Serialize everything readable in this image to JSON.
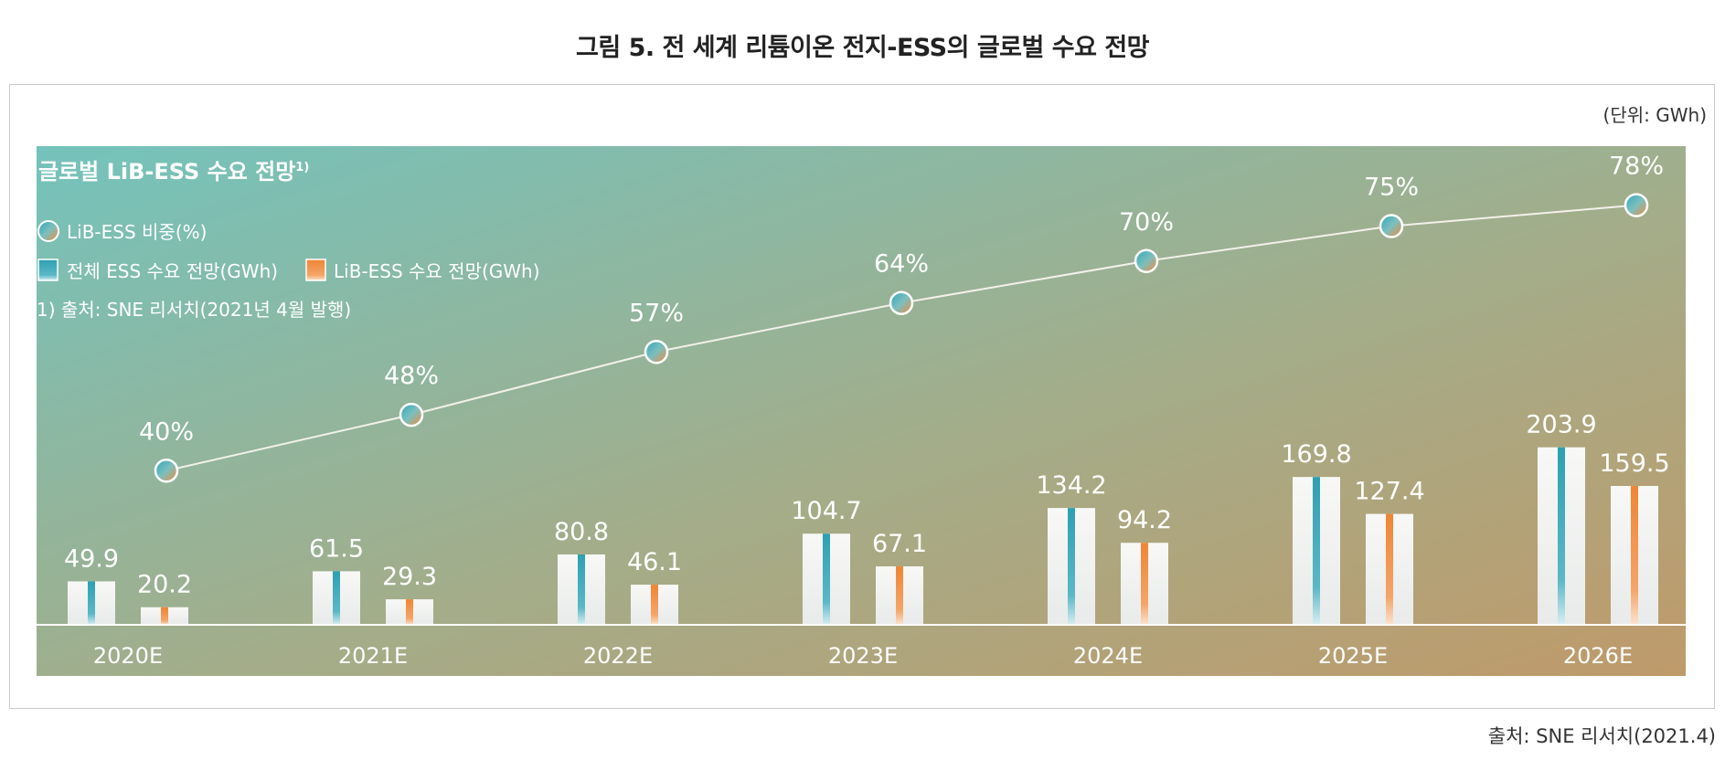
{
  "figure": {
    "title": "그림 5. 전 세계 리튬이온 전지-ESS의 글로벌 수요 전망",
    "unit": "(단위: GWh)",
    "source": "출처: SNE 리서치(2021.4)"
  },
  "chart_data": {
    "type": "bar",
    "title": "글로벌 LiB-ESS 수요 전망",
    "title_sup": "1)",
    "footnote": "1) 출처: SNE 리서치(2021년 4월 발행)",
    "categories": [
      "2020E",
      "2021E",
      "2022E",
      "2023E",
      "2024E",
      "2025E",
      "2026E"
    ],
    "series": [
      {
        "name": "전체 ESS 수요 전망(GWh)",
        "type": "bar",
        "color": "#2fa2b3",
        "values": [
          49.9,
          61.5,
          80.8,
          104.7,
          134.2,
          169.8,
          203.9
        ]
      },
      {
        "name": "LiB-ESS 수요 전망(GWh)",
        "type": "bar",
        "color": "#f08a3e",
        "values": [
          20.2,
          29.3,
          46.1,
          67.1,
          94.2,
          127.4,
          159.5
        ]
      },
      {
        "name": "LiB-ESS 비중(%)",
        "type": "line",
        "color": "#f08a3e",
        "values": [
          40,
          48,
          57,
          64,
          70,
          75,
          78
        ],
        "labels": [
          "40%",
          "48%",
          "57%",
          "64%",
          "70%",
          "75%",
          "78%"
        ]
      }
    ],
    "bar_labels": {
      "total": [
        "49.9",
        "61.5",
        "80.8",
        "104.7",
        "134.2",
        "169.8",
        "203.9"
      ],
      "lib": [
        "20.2",
        "29.3",
        "46.1",
        "67.1",
        "94.2",
        "127.4",
        "159.5"
      ]
    },
    "legend_position": "top-left",
    "grid": false
  }
}
